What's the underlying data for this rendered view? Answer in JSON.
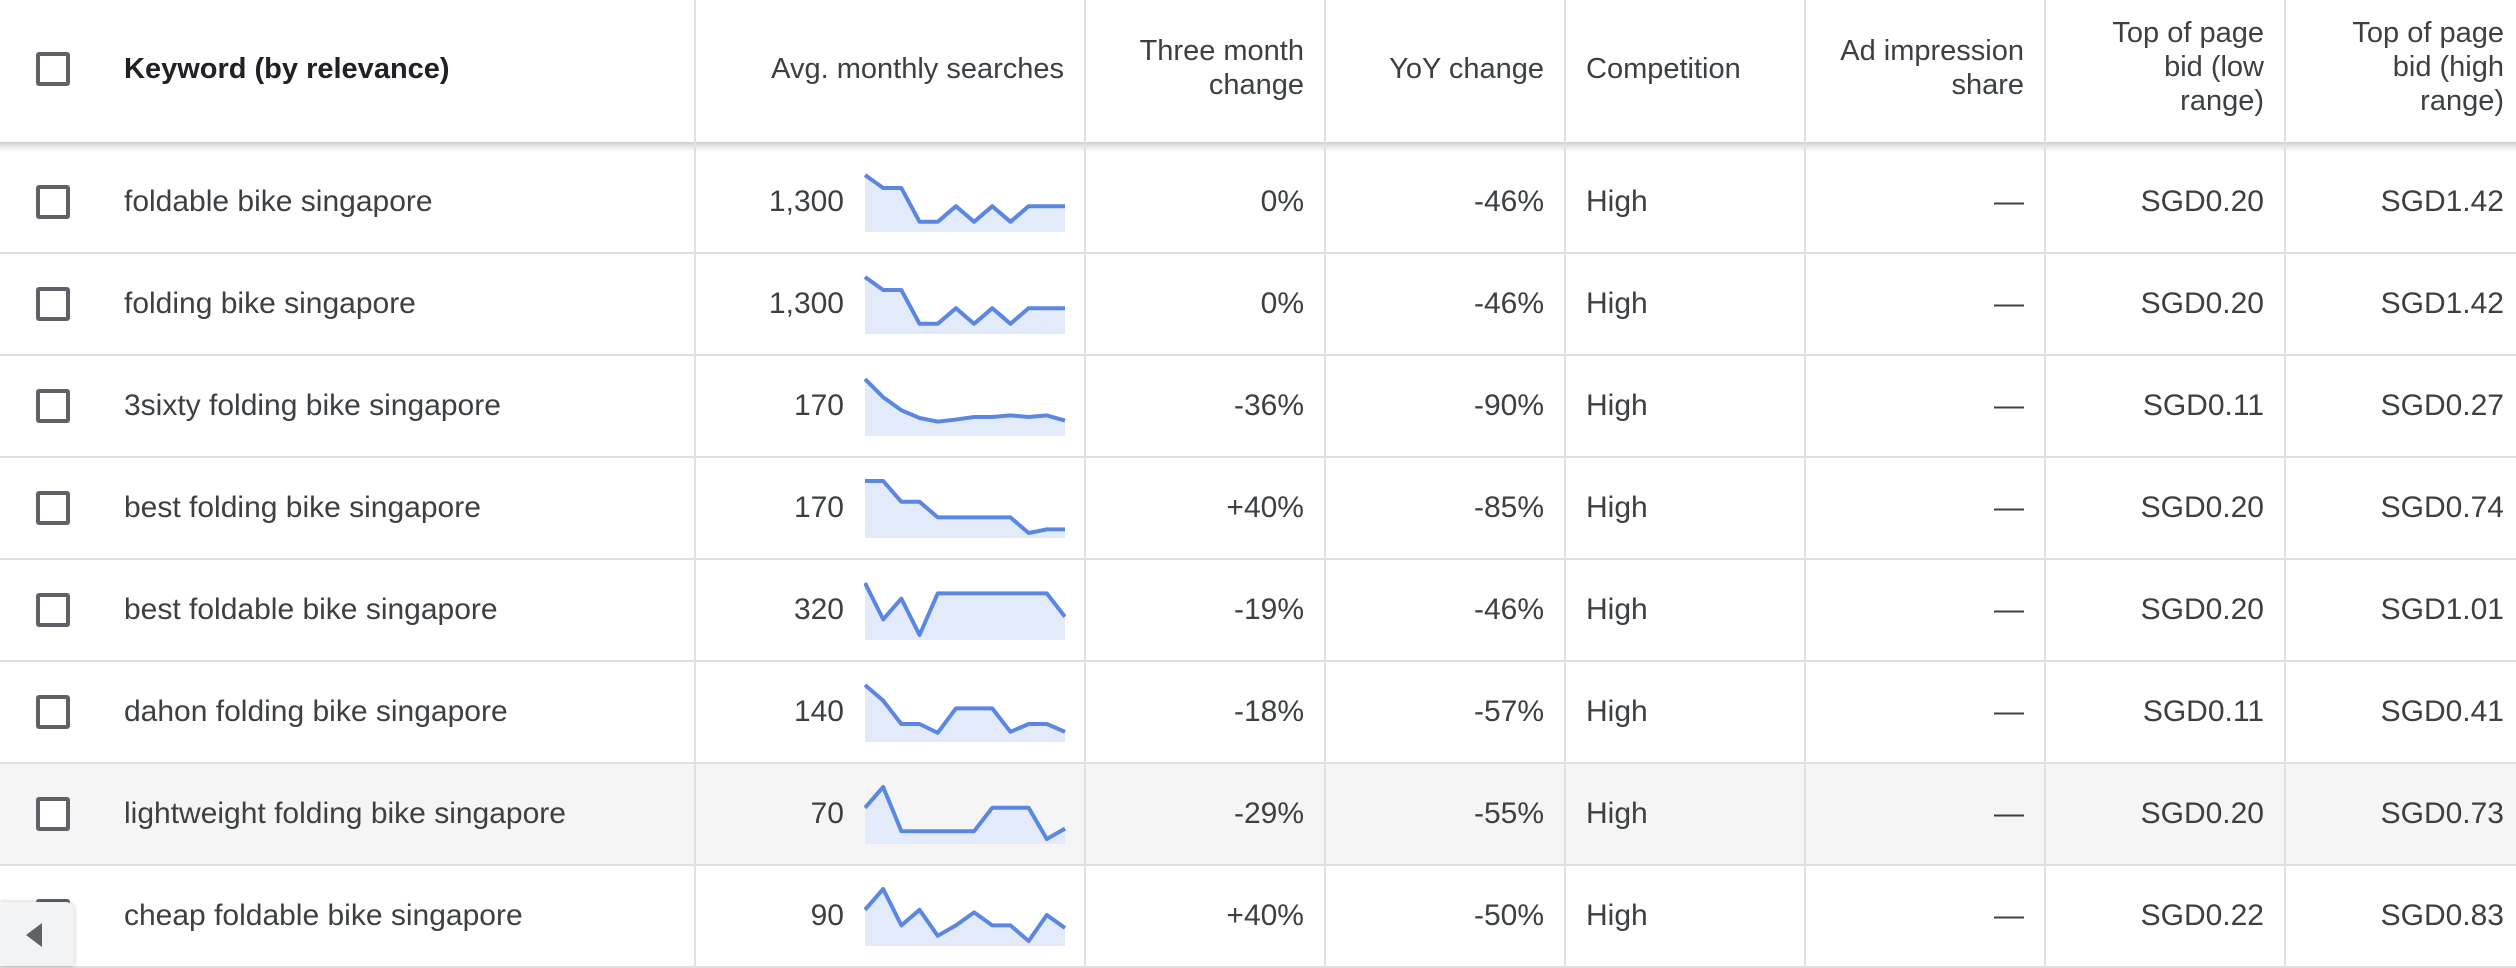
{
  "table": {
    "headers": {
      "keyword": "Keyword (by relevance)",
      "avg_searches": "Avg. monthly searches",
      "three_month_l1": "Three month",
      "three_month_l2": "change",
      "yoy": "YoY change",
      "competition": "Competition",
      "ad_share_l1": "Ad impression",
      "ad_share_l2": "share",
      "bid_low_l1": "Top of page",
      "bid_low_l2": "bid (low",
      "bid_low_l3": "range)",
      "bid_high_l1": "Top of page",
      "bid_high_l2": "bid (high",
      "bid_high_l3": "range)"
    },
    "rows": [
      {
        "keyword": "foldable bike singapore",
        "avg": "1,300",
        "three_month": "0%",
        "yoy": "-46%",
        "competition": "High",
        "ad_share": "—",
        "bid_low": "SGD0.20",
        "bid_high": "SGD1.42",
        "trend": [
          1,
          0.75,
          0.75,
          0.1,
          0.1,
          0.4,
          0.1,
          0.4,
          0.1,
          0.4,
          0.4,
          0.4
        ]
      },
      {
        "keyword": "folding bike singapore",
        "avg": "1,300",
        "three_month": "0%",
        "yoy": "-46%",
        "competition": "High",
        "ad_share": "—",
        "bid_low": "SGD0.20",
        "bid_high": "SGD1.42",
        "trend": [
          1,
          0.75,
          0.75,
          0.1,
          0.1,
          0.4,
          0.1,
          0.4,
          0.1,
          0.4,
          0.4,
          0.4
        ]
      },
      {
        "keyword": "3sixty folding bike singapore",
        "avg": "170",
        "three_month": "-36%",
        "yoy": "-90%",
        "competition": "High",
        "ad_share": "—",
        "bid_low": "SGD0.11",
        "bid_high": "SGD0.27",
        "trend": [
          1,
          0.65,
          0.4,
          0.25,
          0.18,
          0.22,
          0.27,
          0.27,
          0.3,
          0.27,
          0.3,
          0.2
        ]
      },
      {
        "keyword": "best folding bike singapore",
        "avg": "170",
        "three_month": "+40%",
        "yoy": "-85%",
        "competition": "High",
        "ad_share": "—",
        "bid_low": "SGD0.20",
        "bid_high": "SGD0.74",
        "trend": [
          1,
          1,
          0.6,
          0.6,
          0.3,
          0.3,
          0.3,
          0.3,
          0.3,
          0,
          0.07,
          0.07
        ]
      },
      {
        "keyword": "best foldable bike singapore",
        "avg": "320",
        "three_month": "-19%",
        "yoy": "-46%",
        "competition": "High",
        "ad_share": "—",
        "bid_low": "SGD0.20",
        "bid_high": "SGD1.01",
        "trend": [
          1,
          0.3,
          0.7,
          0,
          0.8,
          0.8,
          0.8,
          0.8,
          0.8,
          0.8,
          0.8,
          0.35
        ]
      },
      {
        "keyword": "dahon folding bike singapore",
        "avg": "140",
        "three_month": "-18%",
        "yoy": "-57%",
        "competition": "High",
        "ad_share": "—",
        "bid_low": "SGD0.11",
        "bid_high": "SGD0.41",
        "trend": [
          1,
          0.7,
          0.25,
          0.25,
          0.08,
          0.55,
          0.55,
          0.55,
          0.1,
          0.25,
          0.25,
          0.1
        ]
      },
      {
        "keyword": "lightweight folding bike singapore",
        "avg": "70",
        "three_month": "-29%",
        "yoy": "-55%",
        "competition": "High",
        "ad_share": "—",
        "bid_low": "SGD0.20",
        "bid_high": "SGD0.73",
        "trend": [
          0.6,
          1,
          0.15,
          0.15,
          0.15,
          0.15,
          0.15,
          0.6,
          0.6,
          0.6,
          0,
          0.2
        ]
      },
      {
        "keyword": "cheap foldable bike singapore",
        "avg": "90",
        "three_month": "+40%",
        "yoy": "-50%",
        "competition": "High",
        "ad_share": "—",
        "bid_low": "SGD0.22",
        "bid_high": "SGD0.83",
        "trend": [
          0.6,
          1,
          0.3,
          0.6,
          0.1,
          0.3,
          0.55,
          0.3,
          0.3,
          0,
          0.5,
          0.25
        ]
      }
    ]
  },
  "colors": {
    "spark_line": "#5b87e3",
    "spark_fill": "#e3ebfb"
  },
  "icons": {
    "scroll_left": "chevron-left-icon"
  }
}
